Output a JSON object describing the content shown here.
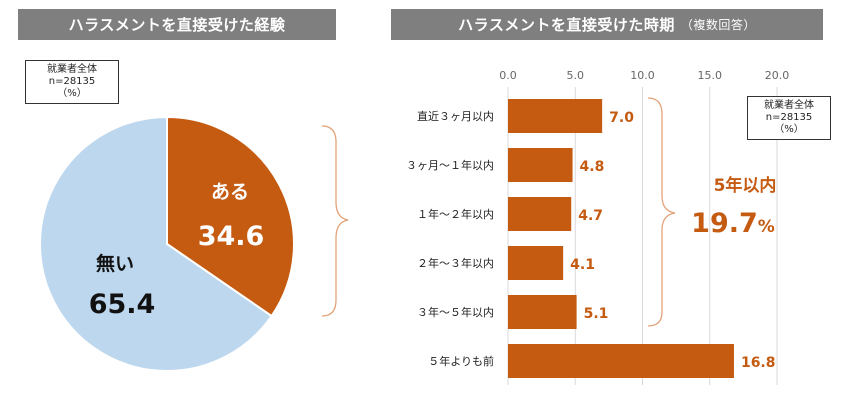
{
  "colors": {
    "orange": "#c55a11",
    "light_blue": "#bdd7ee",
    "header_gray": "#7f7f7f",
    "brace": "#e3a37a",
    "gridline": "#d9d9d9"
  },
  "left": {
    "header": "ハラスメントを直接受けた経験",
    "note": {
      "line1": "就業者全体",
      "line2": "n=28135",
      "line3": "（%）"
    }
  },
  "right": {
    "header": "ハラスメントを直接受けた時期",
    "header_sub": "（複数回答）",
    "note": {
      "line1": "就業者全体",
      "line2": "n=28135",
      "line3": "（%）"
    },
    "summary": {
      "label": "5年以内",
      "value": "19.7",
      "unit": "%"
    }
  },
  "chart_data": [
    {
      "type": "pie",
      "title": "ハラスメントを直接受けた経験",
      "categories": [
        "ある",
        "無い"
      ],
      "values": [
        34.6,
        65.4
      ],
      "colors": [
        "#c55a11",
        "#bdd7ee"
      ]
    },
    {
      "type": "bar",
      "orientation": "horizontal",
      "title": "ハラスメントを直接受けた時期",
      "categories": [
        "直近３ヶ月以内",
        "３ヶ月〜１年以内",
        "１年〜２年以内",
        "２年〜３年以内",
        "３年〜５年以内",
        "５年よりも前"
      ],
      "values": [
        7.0,
        4.8,
        4.7,
        4.1,
        5.1,
        16.8
      ],
      "xlim": [
        0,
        20
      ],
      "xticks": [
        0,
        5,
        10,
        15,
        20
      ],
      "tick_labels": [
        "0.0",
        "5.0",
        "10.0",
        "15.0",
        "20.0"
      ],
      "grid": true,
      "color": "#c55a11"
    }
  ]
}
